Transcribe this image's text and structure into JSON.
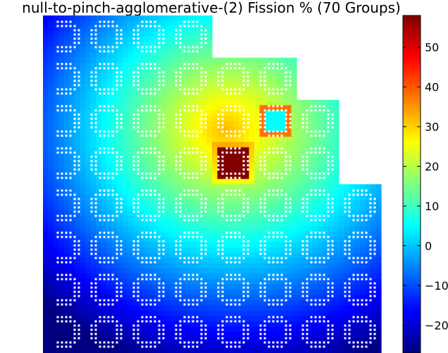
{
  "chart_data": {
    "type": "heatmap",
    "title": "null-to-pinch-agglomerative-(2) Fission % (70 Groups)",
    "colormap": "jet",
    "grid_cols": 8,
    "grid_rows": 8,
    "row_extents": [
      4,
      6,
      7,
      7,
      8,
      8,
      8,
      8
    ],
    "hotspot": {
      "col": 4,
      "row": 3,
      "value": 58
    },
    "coldspot": {
      "col": 5,
      "row": 2,
      "value": 5,
      "ring_value": 38
    },
    "colorbar": {
      "min": -27,
      "max": 58,
      "ticks": [
        50,
        40,
        30,
        20,
        10,
        0,
        -10,
        -20
      ],
      "tick_labels": [
        "50",
        "40",
        "30",
        "20",
        "10",
        "0",
        "−10",
        "−20"
      ]
    }
  }
}
